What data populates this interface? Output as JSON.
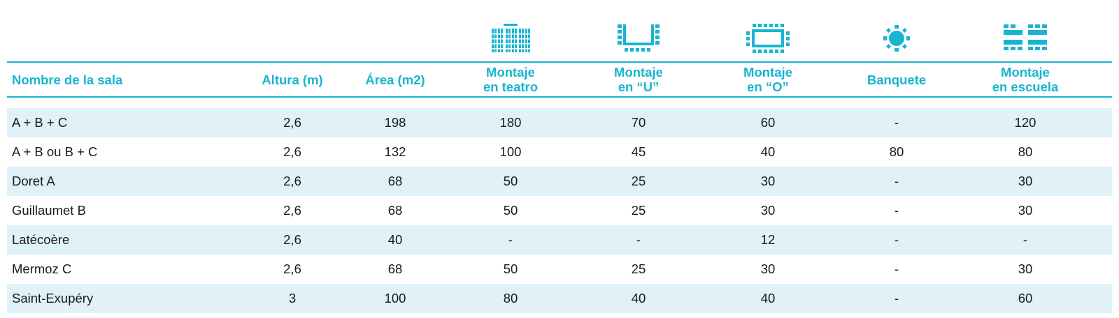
{
  "accent_color": "#1ab4d2",
  "row_shade_color": "#e0f1f8",
  "icons": [
    "theater-layout-icon",
    "u-shape-layout-icon",
    "o-shape-layout-icon",
    "banquet-layout-icon",
    "classroom-layout-icon"
  ],
  "header": {
    "name": "Nombre de la sala",
    "height": "Altura (m)",
    "area": "Área (m2)",
    "theater": [
      "Montaje",
      "en teatro"
    ],
    "u_shape": [
      "Montaje",
      "en “U”"
    ],
    "o_shape": [
      "Montaje",
      "en “O”"
    ],
    "banquet": "Banquete",
    "school": [
      "Montaje",
      "en escuela"
    ]
  },
  "rows": [
    {
      "name": "A + B + C",
      "height": "2,6",
      "area": "198",
      "theater": "180",
      "u": "70",
      "o": "60",
      "banquet": "-",
      "school": "120"
    },
    {
      "name": "A + B ou B + C",
      "height": "2,6",
      "area": "132",
      "theater": "100",
      "u": "45",
      "o": "40",
      "banquet": "80",
      "school": "80"
    },
    {
      "name": "Doret A",
      "height": "2,6",
      "area": "68",
      "theater": "50",
      "u": "25",
      "o": "30",
      "banquet": "-",
      "school": "30"
    },
    {
      "name": "Guillaumet B",
      "height": "2,6",
      "area": "68",
      "theater": "50",
      "u": "25",
      "o": "30",
      "banquet": "-",
      "school": "30"
    },
    {
      "name": "Latécoère",
      "height": "2,6",
      "area": "40",
      "theater": "-",
      "u": "-",
      "o": "12",
      "banquet": "-",
      "school": "-"
    },
    {
      "name": "Mermoz C",
      "height": "2,6",
      "area": "68",
      "theater": "50",
      "u": "25",
      "o": "30",
      "banquet": "-",
      "school": "30"
    },
    {
      "name": "Saint-Exupéry",
      "height": "3",
      "area": "100",
      "theater": "80",
      "u": "40",
      "o": "40",
      "banquet": "-",
      "school": "60"
    }
  ]
}
